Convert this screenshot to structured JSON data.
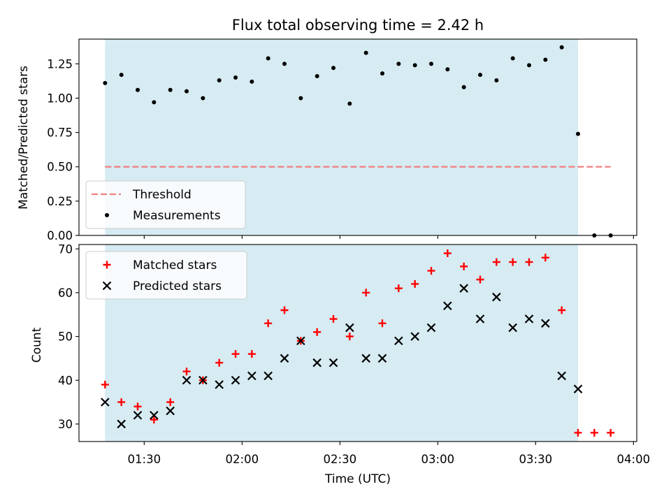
{
  "chart_data": [
    {
      "type": "scatter",
      "title": "Flux total observing time = 2.42 h",
      "xlabel": "",
      "ylabel": "Matched/Predicted stars",
      "xlim": [
        "01:10",
        "04:01"
      ],
      "ylim": [
        0,
        1.43
      ],
      "yticks": [
        "0.00",
        "0.25",
        "0.50",
        "0.75",
        "1.00",
        "1.25"
      ],
      "xticks": [
        "01:30",
        "02:00",
        "02:30",
        "03:00",
        "03:30",
        "04:00"
      ],
      "shade": {
        "from": "01:18",
        "to": "03:43",
        "color": "#add8e6"
      },
      "threshold": {
        "name": "Threshold",
        "y": 0.5,
        "x_from": "01:18",
        "x_to": "03:53",
        "color": "#f08080"
      },
      "legend": {
        "position": "lower-left"
      },
      "series": [
        {
          "name": "Measurements",
          "marker": "dot",
          "color": "#000000",
          "x": [
            "01:18",
            "01:23",
            "01:28",
            "01:33",
            "01:38",
            "01:43",
            "01:48",
            "01:53",
            "01:58",
            "02:03",
            "02:08",
            "02:13",
            "02:18",
            "02:23",
            "02:28",
            "02:33",
            "02:38",
            "02:43",
            "02:48",
            "02:53",
            "02:58",
            "03:03",
            "03:08",
            "03:13",
            "03:18",
            "03:23",
            "03:28",
            "03:33",
            "03:38",
            "03:43",
            "03:48",
            "03:53"
          ],
          "values": [
            1.11,
            1.17,
            1.06,
            0.97,
            1.06,
            1.05,
            1.0,
            1.13,
            1.15,
            1.12,
            1.29,
            1.25,
            1.0,
            1.16,
            1.22,
            0.96,
            1.33,
            1.18,
            1.25,
            1.24,
            1.25,
            1.21,
            1.08,
            1.17,
            1.13,
            1.29,
            1.24,
            1.28,
            1.37,
            0.74,
            0.0,
            0.0
          ]
        }
      ]
    },
    {
      "type": "scatter",
      "title": "",
      "xlabel": "Time (UTC)",
      "ylabel": "Count",
      "xlim": [
        "01:10",
        "04:01"
      ],
      "ylim": [
        26,
        71
      ],
      "yticks": [
        "30",
        "40",
        "50",
        "60",
        "70"
      ],
      "xticks": [
        "01:30",
        "02:00",
        "02:30",
        "03:00",
        "03:30",
        "04:00"
      ],
      "shade": {
        "from": "01:18",
        "to": "03:43",
        "color": "#add8e6"
      },
      "legend": {
        "position": "top-left"
      },
      "series": [
        {
          "name": "Matched stars",
          "marker": "plus",
          "color": "#ff0000",
          "x": [
            "01:18",
            "01:23",
            "01:28",
            "01:33",
            "01:38",
            "01:43",
            "01:48",
            "01:53",
            "01:58",
            "02:03",
            "02:08",
            "02:13",
            "02:18",
            "02:23",
            "02:28",
            "02:33",
            "02:38",
            "02:43",
            "02:48",
            "02:53",
            "02:58",
            "03:03",
            "03:08",
            "03:13",
            "03:18",
            "03:23",
            "03:28",
            "03:33",
            "03:38",
            "03:43",
            "03:48",
            "03:53"
          ],
          "values": [
            39,
            35,
            34,
            31,
            35,
            42,
            40,
            44,
            46,
            46,
            53,
            56,
            49,
            51,
            54,
            50,
            60,
            53,
            61,
            62,
            65,
            69,
            66,
            63,
            67,
            67,
            67,
            68,
            56,
            28,
            28,
            28
          ]
        },
        {
          "name": "Predicted stars",
          "marker": "x",
          "color": "#000000",
          "x": [
            "01:18",
            "01:23",
            "01:28",
            "01:33",
            "01:38",
            "01:43",
            "01:48",
            "01:53",
            "01:58",
            "02:03",
            "02:08",
            "02:13",
            "02:18",
            "02:23",
            "02:28",
            "02:33",
            "02:38",
            "02:43",
            "02:48",
            "02:53",
            "02:58",
            "03:03",
            "03:08",
            "03:13",
            "03:18",
            "03:23",
            "03:28",
            "03:33",
            "03:38",
            "03:43"
          ],
          "values": [
            35,
            30,
            32,
            32,
            33,
            40,
            40,
            39,
            40,
            41,
            41,
            45,
            49,
            44,
            44,
            52,
            45,
            45,
            49,
            50,
            52,
            57,
            61,
            54,
            59,
            52,
            54,
            53,
            41,
            38
          ]
        }
      ]
    }
  ]
}
